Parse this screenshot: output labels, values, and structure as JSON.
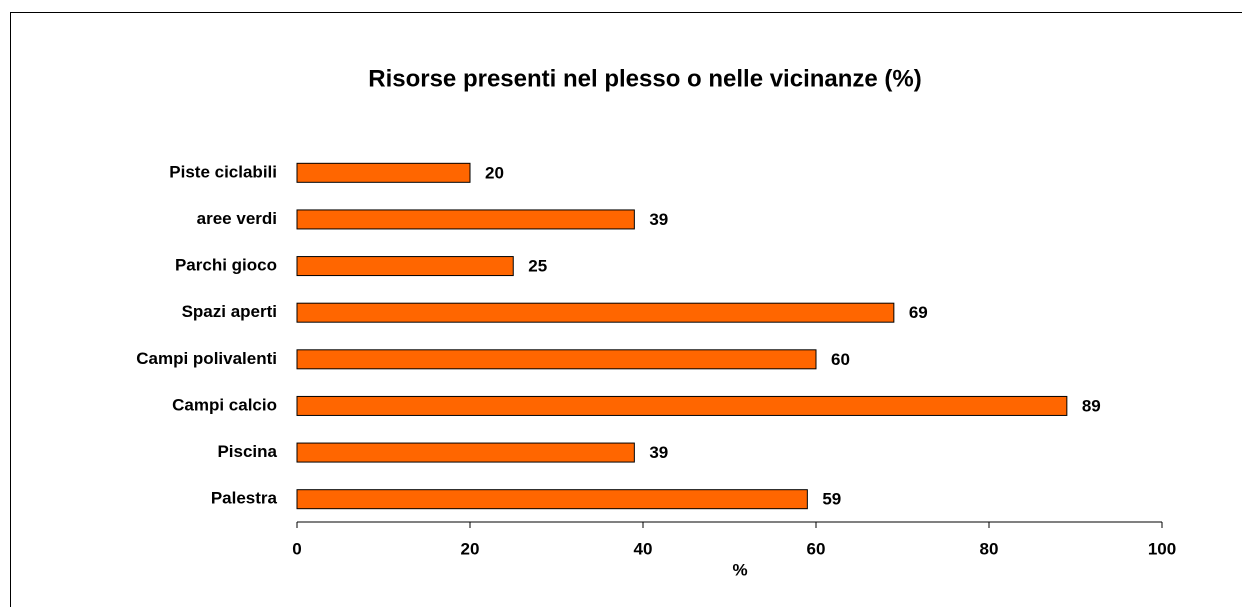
{
  "chart_data": {
    "type": "bar",
    "orientation": "horizontal",
    "title": "Risorse presenti nel plesso o nelle vicinanze (%)",
    "categories": [
      "Piste ciclabili",
      "aree verdi",
      "Parchi gioco",
      "Spazi aperti",
      "Campi polivalenti",
      "Campi calcio",
      "Piscina",
      "Palestra"
    ],
    "values": [
      20,
      39,
      25,
      69,
      60,
      89,
      39,
      59
    ],
    "color": "#ff6600",
    "xlabel": "%",
    "xlim": [
      0,
      100
    ],
    "xticks": [
      0,
      20,
      40,
      60,
      80,
      100
    ],
    "grid": false
  }
}
